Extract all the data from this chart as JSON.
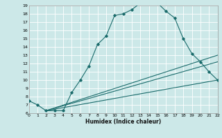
{
  "title": "",
  "xlabel": "Humidex (Indice chaleur)",
  "bg_color": "#cce8e8",
  "line_color": "#1a6b6b",
  "xlim": [
    0,
    22
  ],
  "ylim": [
    6,
    19
  ],
  "yticks": [
    6,
    7,
    8,
    9,
    10,
    11,
    12,
    13,
    14,
    15,
    16,
    17,
    18,
    19
  ],
  "xticks": [
    0,
    1,
    2,
    3,
    4,
    5,
    6,
    7,
    8,
    9,
    10,
    11,
    12,
    13,
    14,
    15,
    16,
    17,
    18,
    19,
    20,
    21,
    22
  ],
  "main_curve_x": [
    0,
    1,
    2,
    3,
    4,
    5,
    6,
    7,
    8,
    9,
    10,
    11,
    12,
    13,
    14,
    15,
    16,
    17,
    18,
    19,
    20,
    21,
    22
  ],
  "main_curve_y": [
    7.5,
    7.0,
    6.3,
    6.3,
    6.3,
    8.5,
    10.0,
    11.7,
    14.3,
    15.3,
    17.8,
    18.0,
    18.5,
    19.3,
    19.5,
    19.3,
    18.3,
    17.5,
    15.0,
    13.2,
    12.2,
    11.0,
    10.0
  ],
  "line2_x": [
    2,
    22
  ],
  "line2_y": [
    6.3,
    13.0
  ],
  "line3_x": [
    2,
    22
  ],
  "line3_y": [
    6.3,
    12.2
  ],
  "line4_x": [
    2,
    22
  ],
  "line4_y": [
    6.3,
    10.0
  ]
}
